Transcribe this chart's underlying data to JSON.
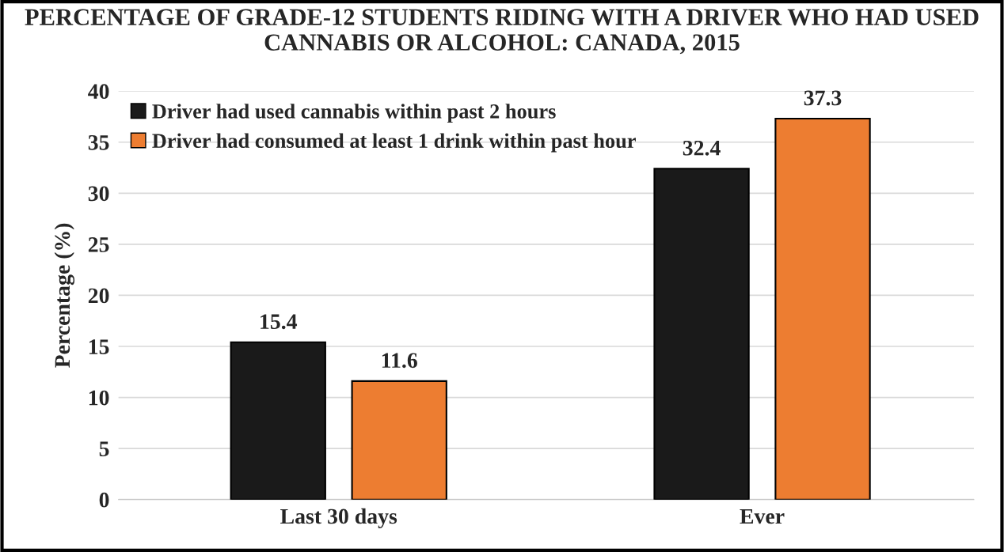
{
  "chart_data": {
    "type": "bar",
    "title": "PERCENTAGE OF GRADE-12 STUDENTS RIDING WITH A DRIVER WHO HAD USED CANNABIS OR ALCOHOL: CANADA, 2015",
    "ylabel": "Percentage (%)",
    "categories": [
      "Last 30 days",
      "Ever"
    ],
    "series": [
      {
        "name": "Driver had used cannabis within past 2 hours",
        "color": "#1a1a1a",
        "values": [
          15.4,
          32.4
        ]
      },
      {
        "name": "Driver had consumed at least 1 drink within past hour",
        "color": "#ed7d31",
        "values": [
          11.6,
          37.3
        ]
      }
    ],
    "ylim": [
      0,
      40
    ],
    "yticks": [
      0,
      5,
      10,
      15,
      20,
      25,
      30,
      35,
      40
    ],
    "grid": "y",
    "legend": "top left",
    "data_labels": true
  }
}
